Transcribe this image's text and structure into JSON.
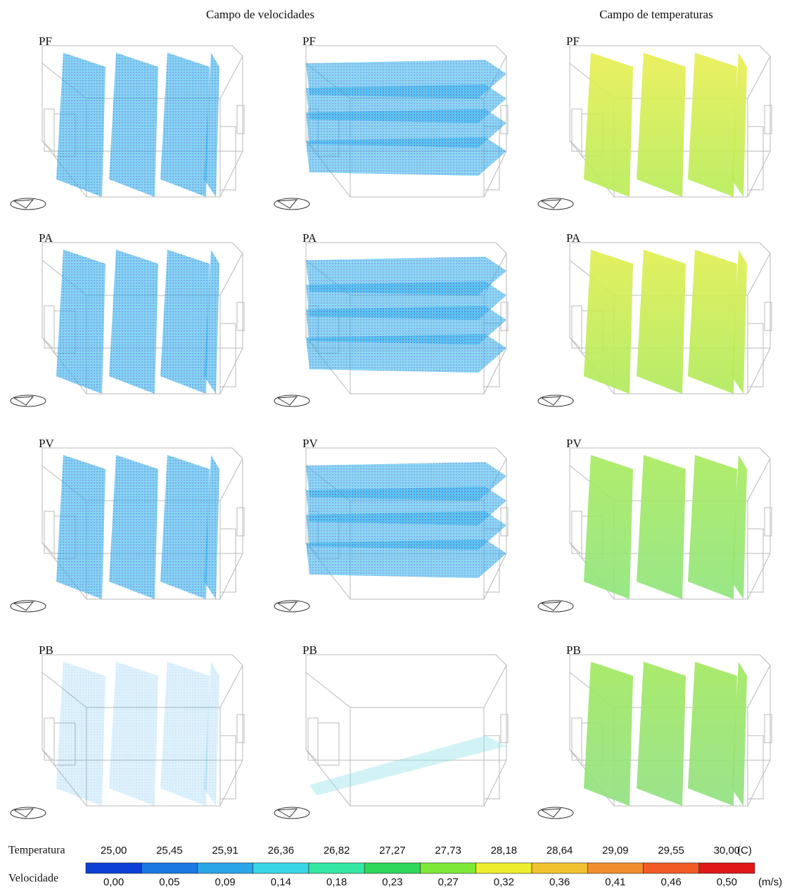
{
  "header": {
    "velocity_title": "Campo de velocidades",
    "temperature_title": "Campo de temperaturas"
  },
  "rows": [
    [
      "PF",
      "PF",
      "PF"
    ],
    [
      "PA",
      "PA",
      "PA"
    ],
    [
      "PV",
      "PV",
      "PV"
    ],
    [
      "PB",
      "PB",
      "PB"
    ]
  ],
  "legend": {
    "temperature": {
      "label": "Temperatura",
      "ticks": [
        "25,00",
        "25,45",
        "25,91",
        "26,36",
        "26,82",
        "27,27",
        "27,73",
        "28,18",
        "28,64",
        "29,09",
        "29,55",
        "30,00"
      ],
      "unit": "(C)"
    },
    "velocity": {
      "label": "Velocidade",
      "ticks": [
        "0,00",
        "0,05",
        "0,09",
        "0,14",
        "0,18",
        "0,23",
        "0,27",
        "0,32",
        "0,36",
        "0,41",
        "0,46",
        "0,50"
      ],
      "unit": "(m/s)"
    },
    "colors": [
      "#0b3fd6",
      "#1b78e2",
      "#2aa6e8",
      "#38d6e6",
      "#34e8a4",
      "#2fd85a",
      "#7ee838",
      "#eeee2e",
      "#f2c22e",
      "#f28e2e",
      "#f25a26",
      "#e01818"
    ]
  }
}
